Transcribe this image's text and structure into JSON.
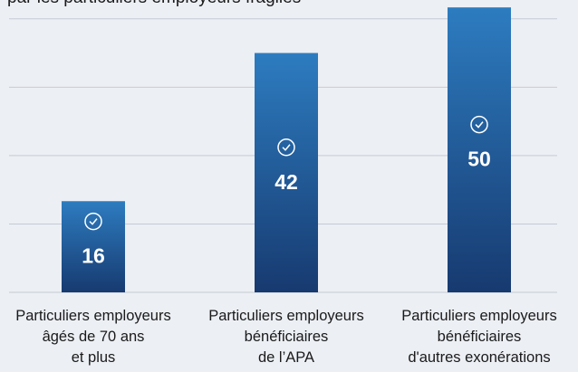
{
  "chart_data": {
    "type": "bar",
    "title": "par les particuliers employeurs fragiles",
    "categories": [
      "Particuliers employeurs\nâgés de 70 ans\net plus",
      "Particuliers employeurs\nbénéficiaires\nde l’APA",
      "Particuliers employeurs\nbénéficiaires\nd'autres exonérations"
    ],
    "values": [
      16,
      42,
      50
    ],
    "color": "#1f4f8f",
    "ylim": [
      0,
      51.3
    ],
    "yticks": [
      0,
      12,
      24,
      36,
      48
    ],
    "grid": true
  }
}
